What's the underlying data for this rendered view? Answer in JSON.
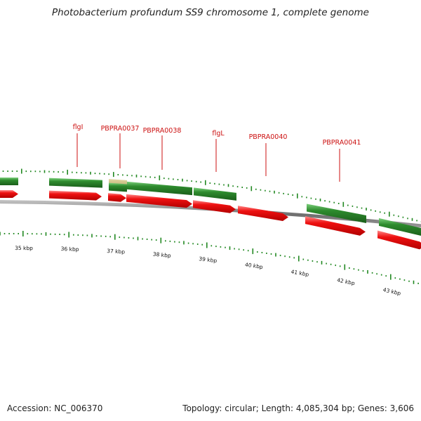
{
  "header": {
    "title": "Photobacterium profundum SS9 chromosome 1, complete genome"
  },
  "footer": {
    "accession_label": "Accession:",
    "accession_value": "NC_006370",
    "topology_label": "Topology:",
    "topology_value": "circular",
    "length_label": "Length:",
    "length_value": "4,085,304 bp",
    "genes_label": "Genes:",
    "genes_value": "3,606"
  },
  "gene_labels": [
    "flgI",
    "PBPRA0037",
    "PBPRA0038",
    "flgL",
    "PBPRA0040",
    "PBPRA0041"
  ],
  "scale_labels": [
    "35 kbp",
    "36 kbp",
    "37 kbp",
    "38 kbp",
    "39 kbp",
    "40 kbp",
    "41 kbp",
    "42 kbp",
    "43 kbp"
  ],
  "colors": {
    "gene_label": "#cc1111",
    "forward_strand": "#2e8b2e",
    "reverse_strand": "#ee1111",
    "highlight_gene": "#b5a565",
    "backbone": "#808080",
    "tick_marks": "#228822"
  }
}
